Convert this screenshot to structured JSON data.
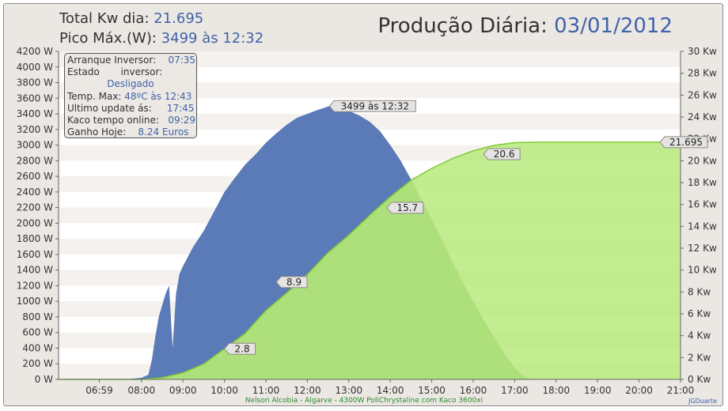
{
  "header": {
    "total_label": "Total Kw dia:",
    "total_value": "21.695",
    "peak_label": "Pico Máx.(W):",
    "peak_value": "3499 às 12:32",
    "title_label": "Produção Diária:",
    "title_date": "03/01/2012"
  },
  "info_box": {
    "startup_label": "Arranque Inversor:",
    "startup_value": "07:35",
    "state_label": "Estado",
    "state_label2": "inversor:",
    "state_value": "Desligado",
    "temp_label": "Temp. Max:",
    "temp_value": "48ºC às 12:43",
    "update_label": "Ultimo update ás:",
    "update_value": "17:45",
    "online_label": "Kaco tempo online:",
    "online_value": "09:29",
    "gain_label": "Ganho Hoje:",
    "gain_value": "8.24 Euros"
  },
  "footer": {
    "text": "Nelson Alcobia  -  Algarve  -  4300W PoliChrystaline com Kaco 3600xi",
    "credit": "JGDuarte"
  },
  "colors": {
    "power_fill": "#5a7ab8",
    "energy_fill": "#b9ea7e",
    "energy_line": "#7ccb2e",
    "overlap_fill": "#6aa46c"
  },
  "chart_data": {
    "type": "area",
    "x_ticks": [
      "06:59",
      "08:00",
      "09:00",
      "10:00",
      "11:00",
      "12:00",
      "13:00",
      "14:00",
      "15:00",
      "16:00",
      "17:00",
      "18:00",
      "19:00",
      "20:00",
      "21:00"
    ],
    "x_range": [
      "06:00",
      "21:00"
    ],
    "y_left": {
      "min": 0,
      "max": 4200,
      "ticks": [
        "0 W",
        "200 W",
        "400 W",
        "600 W",
        "800 W",
        "1000 W",
        "1200 W",
        "1400 W",
        "1600 W",
        "1800 W",
        "2000 W",
        "2200 W",
        "2400 W",
        "2600 W",
        "2800 W",
        "3000 W",
        "3200 W",
        "3400 W",
        "3600 W",
        "3800 W",
        "4000 W",
        "4200 W"
      ]
    },
    "y_right": {
      "min": 0,
      "max": 30,
      "ticks": [
        "0 Kw",
        "2 Kw",
        "4 Kw",
        "6 Kw",
        "8 Kw",
        "10 Kw",
        "12 Kw",
        "14 Kw",
        "16 Kw",
        "18 Kw",
        "20 Kw",
        "22 Kw",
        "24 Kw",
        "26 Kw",
        "28 Kw",
        "30 Kw"
      ]
    },
    "series": [
      {
        "name": "power",
        "axis": "left",
        "points": [
          [
            "07:35",
            0
          ],
          [
            "08:00",
            20
          ],
          [
            "08:10",
            60
          ],
          [
            "08:15",
            250
          ],
          [
            "08:20",
            550
          ],
          [
            "08:25",
            800
          ],
          [
            "08:30",
            950
          ],
          [
            "08:35",
            1100
          ],
          [
            "08:40",
            1200
          ],
          [
            "08:45",
            400
          ],
          [
            "08:50",
            1100
          ],
          [
            "08:55",
            1350
          ],
          [
            "09:00",
            1450
          ],
          [
            "09:15",
            1700
          ],
          [
            "09:30",
            1900
          ],
          [
            "09:45",
            2150
          ],
          [
            "10:00",
            2400
          ],
          [
            "10:15",
            2580
          ],
          [
            "10:30",
            2750
          ],
          [
            "10:45",
            2880
          ],
          [
            "11:00",
            3030
          ],
          [
            "11:15",
            3150
          ],
          [
            "11:30",
            3260
          ],
          [
            "11:45",
            3350
          ],
          [
            "12:00",
            3400
          ],
          [
            "12:15",
            3450
          ],
          [
            "12:32",
            3499
          ],
          [
            "12:45",
            3470
          ],
          [
            "13:00",
            3440
          ],
          [
            "13:15",
            3380
          ],
          [
            "13:30",
            3300
          ],
          [
            "13:45",
            3180
          ],
          [
            "14:00",
            3000
          ],
          [
            "14:15",
            2800
          ],
          [
            "14:30",
            2560
          ],
          [
            "14:45",
            2300
          ],
          [
            "15:00",
            2050
          ],
          [
            "15:15",
            1780
          ],
          [
            "15:30",
            1500
          ],
          [
            "15:45",
            1240
          ],
          [
            "16:00",
            1000
          ],
          [
            "16:15",
            760
          ],
          [
            "16:30",
            540
          ],
          [
            "16:45",
            330
          ],
          [
            "17:00",
            150
          ],
          [
            "17:10",
            60
          ],
          [
            "17:20",
            15
          ],
          [
            "17:30",
            0
          ]
        ]
      },
      {
        "name": "energy",
        "axis": "right",
        "points": [
          [
            "06:00",
            0
          ],
          [
            "08:00",
            0
          ],
          [
            "08:30",
            0.15
          ],
          [
            "09:00",
            0.6
          ],
          [
            "09:30",
            1.4
          ],
          [
            "10:00",
            2.8
          ],
          [
            "10:30",
            4.2
          ],
          [
            "11:00",
            6.3
          ],
          [
            "11:30",
            7.9
          ],
          [
            "12:00",
            9.6
          ],
          [
            "12:30",
            11.6
          ],
          [
            "13:00",
            13.2
          ],
          [
            "13:30",
            15.0
          ],
          [
            "14:00",
            16.7
          ],
          [
            "14:30",
            18.2
          ],
          [
            "15:00",
            19.3
          ],
          [
            "15:30",
            20.2
          ],
          [
            "16:00",
            20.9
          ],
          [
            "16:30",
            21.4
          ],
          [
            "17:00",
            21.65
          ],
          [
            "17:30",
            21.695
          ],
          [
            "21:00",
            21.695
          ]
        ]
      }
    ],
    "annotations": [
      {
        "text": "2.8",
        "x": "10:00",
        "y": 2.8,
        "axis": "right"
      },
      {
        "text": "8.9",
        "x": "11:15",
        "y": 8.9,
        "axis": "right"
      },
      {
        "text": "15.7",
        "x": "13:55",
        "y": 15.7,
        "axis": "right"
      },
      {
        "text": "20.6",
        "x": "16:15",
        "y": 20.6,
        "axis": "right"
      },
      {
        "text": "3499 às 12:32",
        "x": "12:32",
        "y": 3499,
        "axis": "left"
      },
      {
        "text": "21.695",
        "x": "21:00",
        "y": 21.695,
        "axis": "right"
      }
    ]
  }
}
